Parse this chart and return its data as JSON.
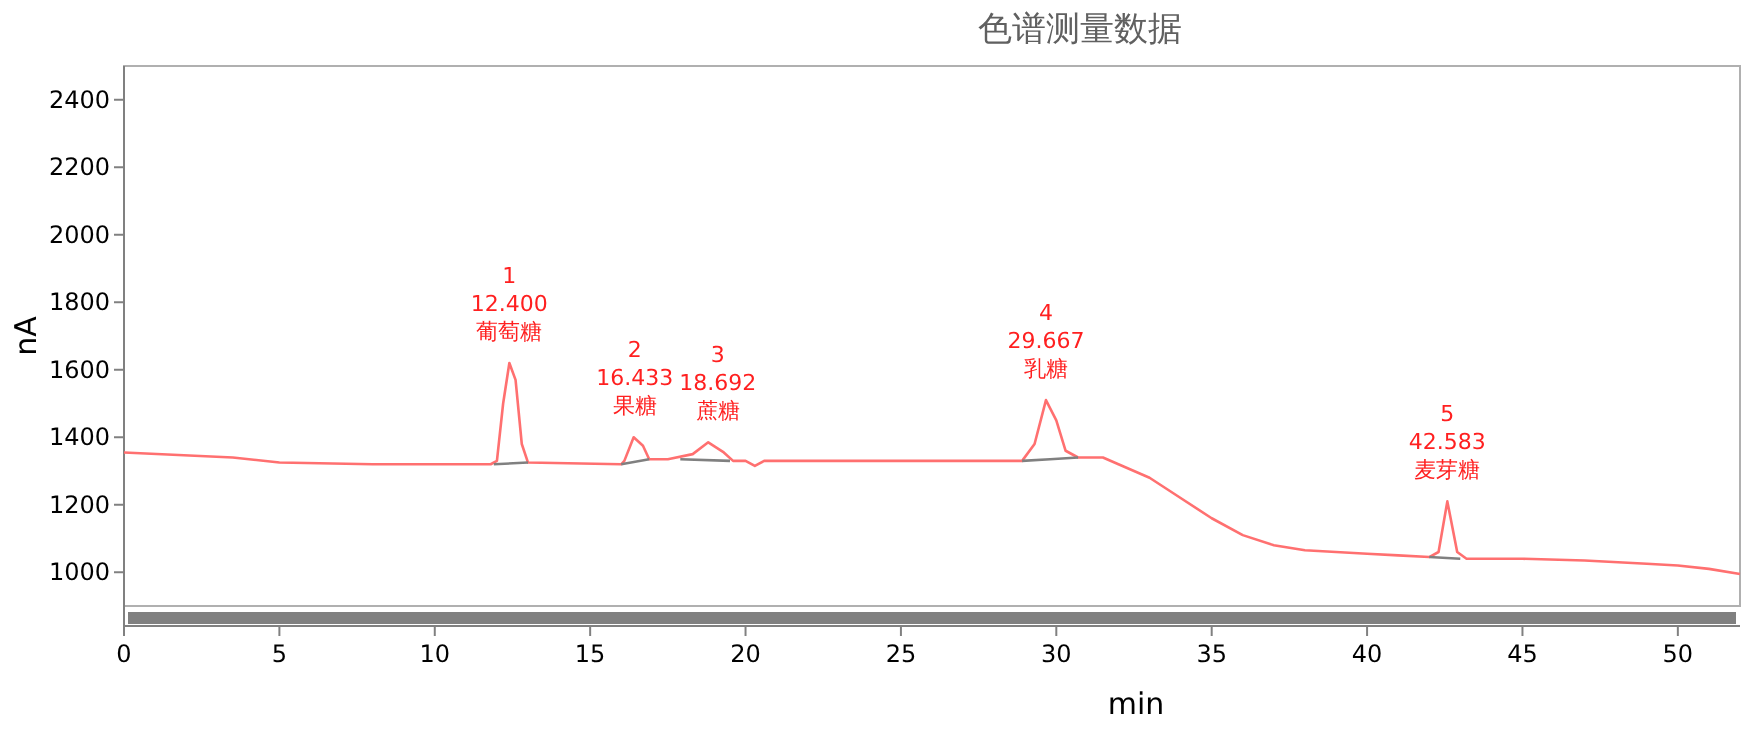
{
  "chart_data": {
    "type": "line",
    "title": "色谱测量数据",
    "xlabel": "min",
    "ylabel": "nA",
    "xlim": [
      0,
      52
    ],
    "ylim": [
      900,
      2500
    ],
    "xticks": [
      0,
      5,
      10,
      15,
      20,
      25,
      30,
      35,
      40,
      45,
      50
    ],
    "yticks": [
      1000,
      1200,
      1400,
      1600,
      1800,
      2000,
      2200,
      2400
    ],
    "grid": false,
    "series": [
      {
        "color": "#ff7070",
        "x": [
          0,
          3.5,
          5,
          8,
          11.8,
          12.0,
          12.2,
          12.4,
          12.6,
          12.8,
          13.0,
          16.0,
          16.1,
          16.4,
          16.7,
          16.9,
          17.5,
          18.3,
          18.8,
          19.3,
          19.6,
          20,
          20.3,
          20.6,
          25,
          28.9,
          29.3,
          29.667,
          30,
          30.3,
          30.7,
          31.5,
          32,
          33,
          34,
          35,
          36,
          37,
          38,
          40,
          41,
          42,
          42.3,
          42.583,
          42.9,
          43.2,
          45,
          47,
          49,
          50,
          51,
          52
        ],
        "values": [
          1355,
          1340,
          1325,
          1320,
          1320,
          1330,
          1500,
          1620,
          1570,
          1380,
          1325,
          1320,
          1330,
          1400,
          1375,
          1335,
          1335,
          1350,
          1385,
          1355,
          1330,
          1330,
          1315,
          1330,
          1330,
          1330,
          1380,
          1510,
          1450,
          1360,
          1340,
          1340,
          1320,
          1280,
          1220,
          1160,
          1110,
          1080,
          1065,
          1055,
          1050,
          1045,
          1060,
          1210,
          1060,
          1040,
          1040,
          1035,
          1025,
          1020,
          1010,
          995
        ]
      },
      {
        "color": "#808080",
        "x": [
          11.9,
          13.0
        ],
        "values": [
          1320,
          1325
        ]
      },
      {
        "color": "#808080",
        "x": [
          16.0,
          16.9
        ],
        "values": [
          1320,
          1335
        ]
      },
      {
        "color": "#808080",
        "x": [
          17.9,
          19.5
        ],
        "values": [
          1335,
          1330
        ]
      },
      {
        "color": "#808080",
        "x": [
          28.9,
          29.8,
          30.7
        ],
        "values": [
          1330,
          1335,
          1340
        ]
      },
      {
        "color": "#808080",
        "x": [
          42.0,
          43.0
        ],
        "values": [
          1045,
          1040
        ]
      }
    ],
    "annotations": [
      {
        "text": "1\n12.400\n葡萄糖",
        "x": 12.4,
        "y": 1620
      },
      {
        "text": "2\n16.433\n果糖",
        "x": 16.433,
        "y": 1400
      },
      {
        "text": "3\n18.692\n蔗糖",
        "x": 18.692,
        "y": 1385
      },
      {
        "text": "4\n29.667\n乳糖",
        "x": 29.667,
        "y": 1510
      },
      {
        "text": "5\n42.583\n麦芽糖",
        "x": 42.583,
        "y": 1210
      }
    ]
  }
}
